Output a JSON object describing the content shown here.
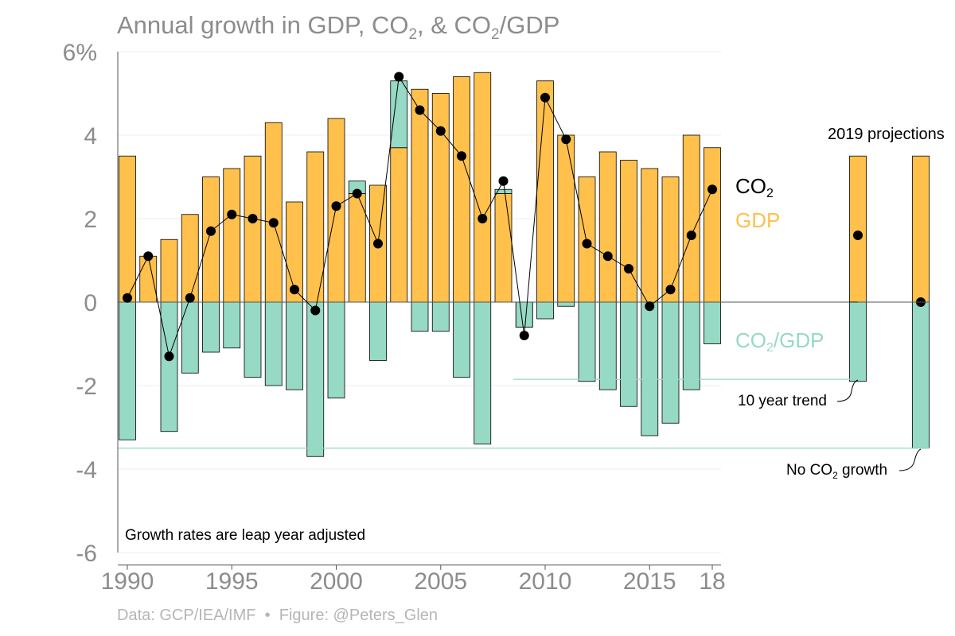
{
  "title": {
    "main": "Annual growth in GDP, CO",
    "sub1": "2",
    "mid": ", & CO",
    "sub2": "2",
    "end": "/GDP"
  },
  "footer": {
    "source": "Data: GCP/IEA/IMF",
    "separator": "•",
    "credit": "Figure: @Peters_Glen"
  },
  "colors": {
    "gdp": "#ffc04c",
    "co2_gdp": "#96d9c4",
    "co2_marker": "#000000",
    "axis": "#8c8c8c",
    "gridline": "#eeeeee"
  },
  "chart_data": {
    "type": "bar",
    "y_unit": "%",
    "ylim": [
      -6,
      6
    ],
    "y_ticks": [
      6,
      4,
      2,
      0,
      -2,
      -4,
      -6
    ],
    "y_tick_labels": [
      "6%",
      "4",
      "2",
      "0",
      "-2",
      "-4",
      "-6"
    ],
    "x_tick_labels": [
      "1990",
      "1995",
      "2000",
      "2005",
      "2010",
      "2015",
      "18"
    ],
    "x_tick_years": [
      1990,
      1995,
      2000,
      2005,
      2010,
      2015,
      2018
    ],
    "grid": true,
    "years": [
      1990,
      1991,
      1992,
      1993,
      1994,
      1995,
      1996,
      1997,
      1998,
      1999,
      2000,
      2001,
      2002,
      2003,
      2004,
      2005,
      2006,
      2007,
      2008,
      2009,
      2010,
      2011,
      2012,
      2013,
      2014,
      2015,
      2016,
      2017,
      2018
    ],
    "series": [
      {
        "name": "GDP",
        "values": [
          3.5,
          1.1,
          1.5,
          2.1,
          3.0,
          3.2,
          3.5,
          4.3,
          2.4,
          3.6,
          4.4,
          2.6,
          2.8,
          3.7,
          5.1,
          5.0,
          5.4,
          5.5,
          2.6,
          -0.6,
          5.3,
          4.0,
          3.0,
          3.6,
          3.4,
          3.2,
          3.0,
          4.0,
          3.7
        ]
      },
      {
        "name": "CO2/GDP",
        "values": [
          -3.3,
          0.0,
          -3.1,
          -1.7,
          -1.2,
          -1.1,
          -1.8,
          -2.0,
          -2.1,
          -3.7,
          -2.3,
          0.3,
          -1.4,
          1.6,
          -0.7,
          -0.7,
          -1.8,
          -3.4,
          0.1,
          -0.6,
          -0.4,
          -0.1,
          -1.9,
          -2.1,
          -2.5,
          -3.2,
          -2.9,
          -2.1,
          -1.0
        ]
      },
      {
        "name": "CO2",
        "values": [
          0.1,
          1.1,
          -1.3,
          0.1,
          1.7,
          2.1,
          2.0,
          1.9,
          0.3,
          -0.2,
          2.3,
          2.6,
          1.4,
          5.4,
          4.6,
          4.1,
          3.5,
          2.0,
          2.9,
          -0.8,
          4.9,
          3.9,
          1.4,
          1.1,
          0.8,
          -0.1,
          0.3,
          1.6,
          2.7
        ]
      }
    ],
    "projections": {
      "label": "2019 projections",
      "bars": [
        {
          "label": "10 year trend",
          "gdp": 3.5,
          "co2_gdp": -1.9,
          "co2": 1.6
        },
        {
          "label_parts": [
            "No CO",
            "2",
            " growth"
          ],
          "gdp": 3.5,
          "co2_gdp": -3.5,
          "co2": 0.0
        }
      ]
    },
    "legend": {
      "co2": {
        "text": "CO",
        "sub": "2"
      },
      "gdp": {
        "text": "GDP"
      },
      "co2_gdp": {
        "text": "CO",
        "sub": "2",
        "tail": "/GDP"
      }
    },
    "annotation": "Growth rates are leap year adjusted"
  }
}
